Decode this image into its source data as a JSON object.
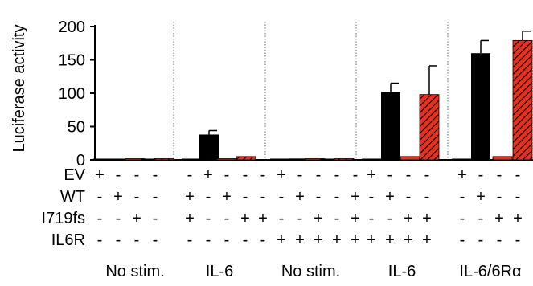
{
  "chart_data": {
    "type": "bar",
    "ylabel": "Luciferase activity",
    "ylim": [
      0,
      200
    ],
    "yticks": [
      0,
      50,
      100,
      150,
      200
    ],
    "groups": [
      {
        "label": "No stim.",
        "bars": [
          {
            "value": 1,
            "err": 0,
            "fill": "black"
          },
          {
            "value": 1,
            "err": 0,
            "fill": "black"
          },
          {
            "value": 1,
            "err": 0,
            "fill": "red"
          },
          {
            "value": 1,
            "err": 0,
            "fill": "black"
          },
          {
            "value": 1,
            "err": 0,
            "fill": "red-hatched"
          }
        ]
      },
      {
        "label": "IL-6",
        "bars": [
          {
            "value": 1,
            "err": 0,
            "fill": "black"
          },
          {
            "value": 38,
            "err": 6,
            "fill": "black"
          },
          {
            "value": 1,
            "err": 0,
            "fill": "red"
          },
          {
            "value": 5,
            "err": 0,
            "fill": "red-hatched"
          }
        ]
      },
      {
        "label": "No stim.",
        "bars": [
          {
            "value": 1,
            "err": 0,
            "fill": "black"
          },
          {
            "value": 2,
            "err": 0,
            "fill": "black"
          },
          {
            "value": 1,
            "err": 0,
            "fill": "red"
          },
          {
            "value": 1,
            "err": 0,
            "fill": "black"
          },
          {
            "value": 1,
            "err": 0,
            "fill": "red-hatched"
          }
        ]
      },
      {
        "label": "IL-6",
        "bars": [
          {
            "value": 1,
            "err": 0,
            "fill": "black"
          },
          {
            "value": 102,
            "err": 13,
            "fill": "black"
          },
          {
            "value": 5,
            "err": 0,
            "fill": "red"
          },
          {
            "value": 98,
            "err": 43,
            "fill": "red-hatched"
          }
        ]
      },
      {
        "label": "IL-6/6Rα",
        "bars": [
          {
            "value": 1,
            "err": 0,
            "fill": "black"
          },
          {
            "value": 160,
            "err": 19,
            "fill": "black"
          },
          {
            "value": 5,
            "err": 0,
            "fill": "red"
          },
          {
            "value": 179,
            "err": 14,
            "fill": "red-hatched"
          }
        ]
      }
    ],
    "condition_rows": [
      {
        "label": "EV",
        "signs": [
          "+",
          "-",
          "-",
          "-",
          "-",
          "+",
          "-",
          "-",
          "-",
          "+",
          "-",
          "-",
          "-",
          "-",
          "+",
          "-",
          "-",
          "-",
          "+",
          "-",
          "-",
          "-"
        ]
      },
      {
        "label": "WT",
        "signs": [
          "-",
          "+",
          "-",
          "-",
          "+",
          "-",
          "+",
          "-",
          "-",
          "-",
          "+",
          "-",
          "-",
          "+",
          "-",
          "+",
          "-",
          "-",
          "-",
          "+",
          "-",
          "-"
        ]
      },
      {
        "label": "I719fs",
        "signs": [
          "-",
          "-",
          "+",
          "-",
          "+",
          "-",
          "-",
          "+",
          "+",
          "-",
          "-",
          "+",
          "-",
          "+",
          "-",
          "-",
          "+",
          "+",
          "-",
          "-",
          "+",
          "+"
        ]
      },
      {
        "label": "IL6R",
        "signs": [
          "-",
          "-",
          "-",
          "-",
          "-",
          "-",
          "-",
          "-",
          "-",
          "+",
          "+",
          "+",
          "+",
          "+",
          "+",
          "+",
          "+",
          "+",
          "-",
          "-",
          "-",
          "-"
        ]
      }
    ],
    "colors": {
      "black": "#000000",
      "red": "#e8301e",
      "hatch_line": "#000000",
      "divider": "#666666"
    }
  }
}
